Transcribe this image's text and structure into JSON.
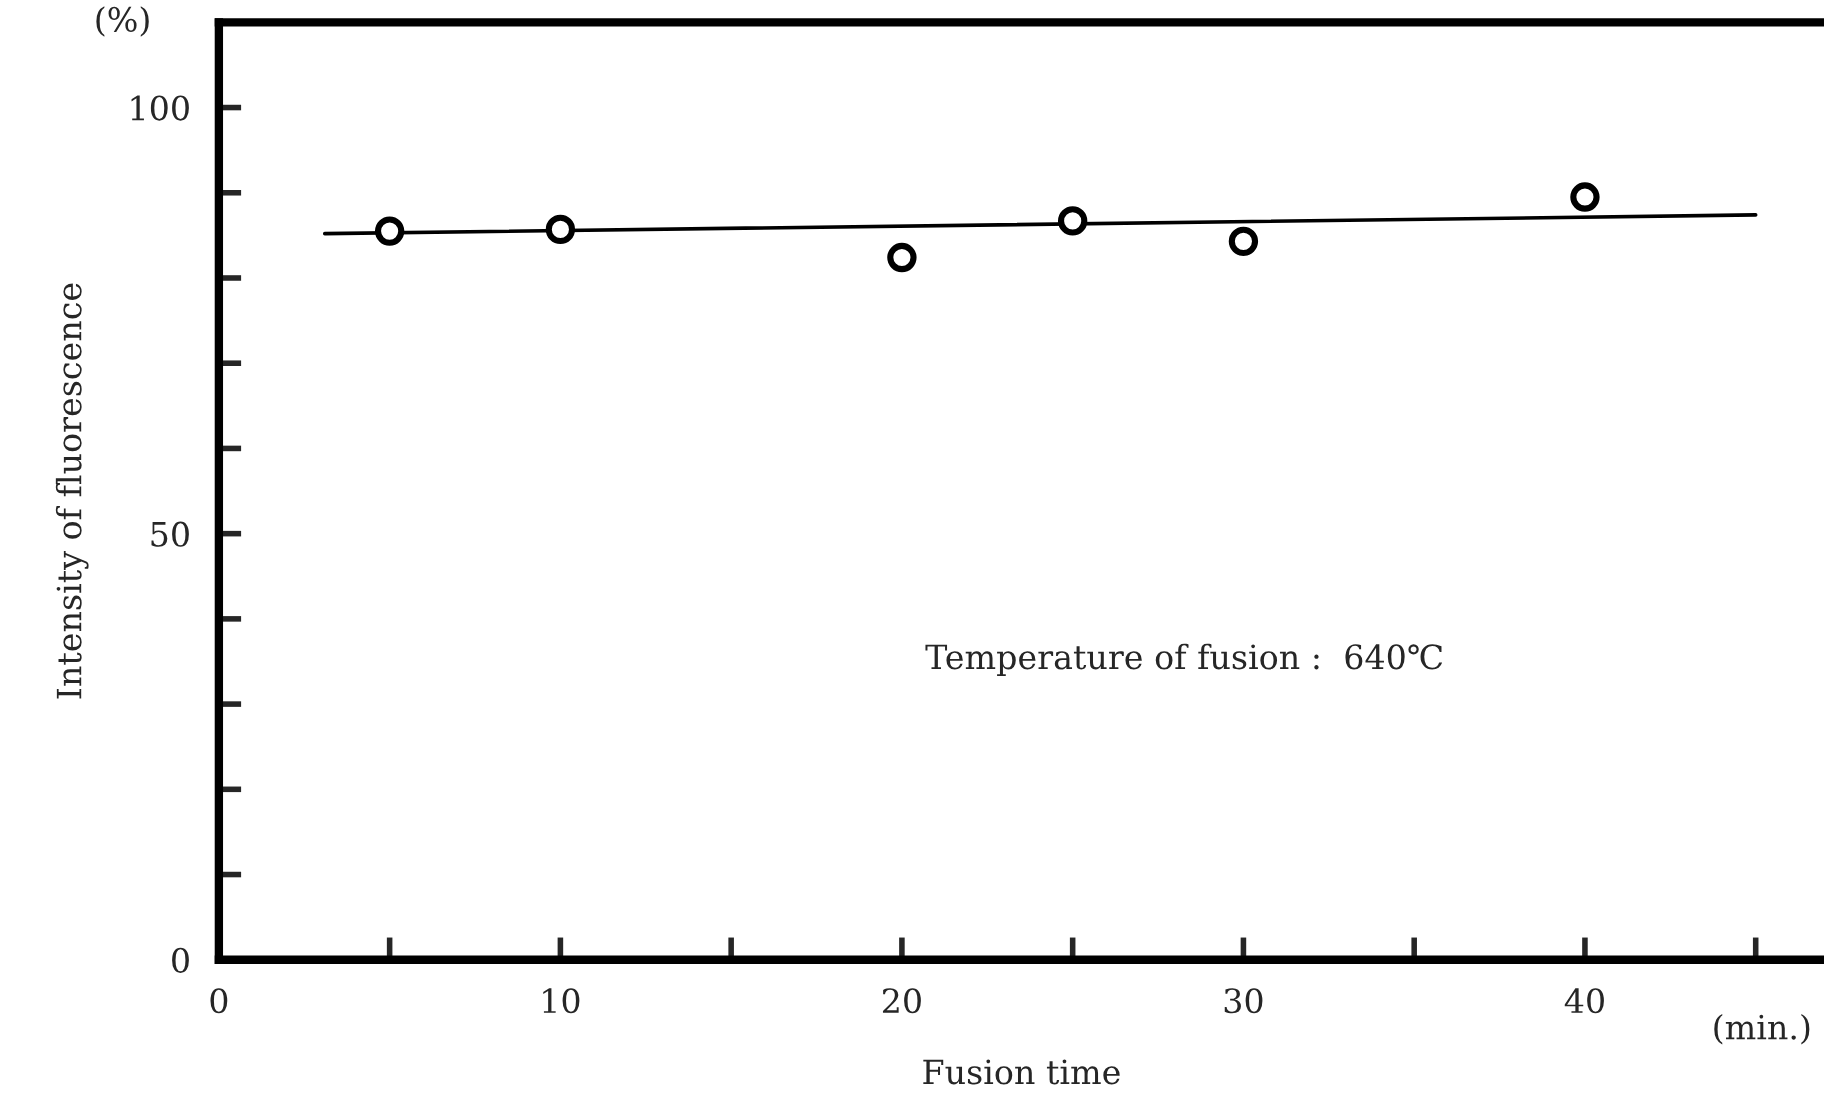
{
  "chart_data": {
    "type": "scatter",
    "xlabel": "Fusion time",
    "ylabel": "Intensity of fluorescence",
    "annotations": [
      "Temperature of fusion :  640℃",
      "(%)",
      "(min.)"
    ],
    "series": [
      {
        "marker": "circle",
        "color": "#000000",
        "x": [
          5,
          10,
          20,
          25,
          30,
          40
        ],
        "values": [
          85.5,
          85.7,
          82.4,
          86.7,
          84.3,
          89.5
        ]
      },
      {
        "type": "line",
        "marker": "none",
        "color": "#000000",
        "x": [
          3.1,
          45
        ],
        "values": [
          85.2,
          87.4
        ]
      }
    ],
    "line_style": "solid",
    "grid": false,
    "xlim": [
      0,
      47
    ],
    "ylim": [
      0,
      110
    ],
    "xticks": [
      0,
      {
        "value": 5,
        "label": null
      },
      10,
      {
        "value": 15,
        "label": null
      },
      20,
      {
        "value": 25,
        "label": null
      },
      30,
      {
        "value": 35,
        "label": null
      },
      40,
      {
        "value": 45,
        "label": null
      }
    ],
    "yticks": [
      0,
      {
        "value": 10,
        "label": null
      },
      {
        "value": 20,
        "label": null
      },
      {
        "value": 30,
        "label": null
      },
      {
        "value": 40,
        "label": null
      },
      50,
      {
        "value": 60,
        "label": null
      },
      {
        "value": 70,
        "label": null
      },
      {
        "value": 80,
        "label": null
      },
      {
        "value": 90,
        "label": null
      },
      100
    ]
  }
}
